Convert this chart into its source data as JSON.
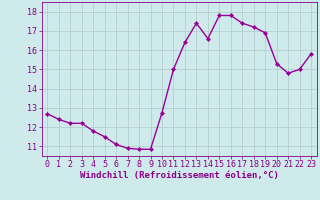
{
  "x": [
    0,
    1,
    2,
    3,
    4,
    5,
    6,
    7,
    8,
    9,
    10,
    11,
    12,
    13,
    14,
    15,
    16,
    17,
    18,
    19,
    20,
    21,
    22,
    23
  ],
  "y": [
    12.7,
    12.4,
    12.2,
    12.2,
    11.8,
    11.5,
    11.1,
    10.9,
    10.85,
    10.85,
    12.75,
    15.0,
    16.4,
    17.4,
    16.6,
    17.8,
    17.8,
    17.4,
    17.2,
    16.9,
    15.3,
    14.8,
    15.0,
    15.8
  ],
  "line_color": "#990099",
  "marker": "D",
  "marker_size": 2.0,
  "bg_color": "#ceeaea",
  "grid_color": "#b0c8c8",
  "xlabel": "Windchill (Refroidissement éolien,°C)",
  "xlim": [
    -0.5,
    23.5
  ],
  "ylim": [
    10.5,
    18.5
  ],
  "yticks": [
    11,
    12,
    13,
    14,
    15,
    16,
    17,
    18
  ],
  "xticks": [
    0,
    1,
    2,
    3,
    4,
    5,
    6,
    7,
    8,
    9,
    10,
    11,
    12,
    13,
    14,
    15,
    16,
    17,
    18,
    19,
    20,
    21,
    22,
    23
  ],
  "line_color_hex": "#880088",
  "tick_color": "#880088",
  "axis_color": "#880088",
  "xlabel_fontsize": 6.5,
  "tick_fontsize": 6.0,
  "linewidth": 1.0
}
